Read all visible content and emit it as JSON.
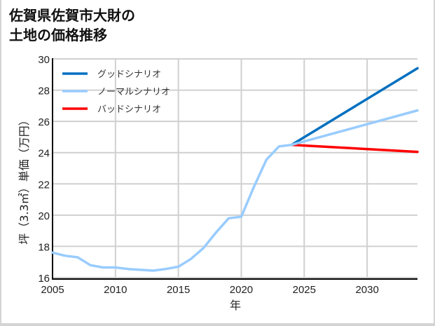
{
  "title_line1": "佐賀県佐賀市大財の",
  "title_line2": "土地の価格推移",
  "chart_data": {
    "type": "line",
    "title": "佐賀県佐賀市大財の土地の価格推移",
    "xlabel": "年",
    "ylabel": "坪（3.3㎡）単価（万円）",
    "xlim": [
      2005,
      2034
    ],
    "ylim": [
      16,
      30
    ],
    "x_ticks": [
      2005,
      2010,
      2015,
      2020,
      2025,
      2030
    ],
    "y_ticks": [
      16,
      18,
      20,
      22,
      24,
      26,
      28,
      30
    ],
    "grid": true,
    "legend_position": "upper left",
    "history": {
      "x": [
        2005,
        2006,
        2007,
        2008,
        2009,
        2010,
        2011,
        2012,
        2013,
        2014,
        2015,
        2016,
        2017,
        2018,
        2019,
        2020,
        2021,
        2022,
        2023,
        2024
      ],
      "values": [
        17.6,
        17.4,
        17.3,
        16.8,
        16.65,
        16.65,
        16.55,
        16.5,
        16.45,
        16.55,
        16.7,
        17.2,
        17.9,
        18.9,
        19.8,
        19.9,
        21.8,
        23.55,
        24.4,
        24.5
      ]
    },
    "series": [
      {
        "name": "グッドシナリオ",
        "color": "#0070c0",
        "x": [
          2024,
          2034
        ],
        "values": [
          24.5,
          29.4
        ]
      },
      {
        "name": "ノーマルシナリオ",
        "color": "#99ccff",
        "x": [
          2024,
          2034
        ],
        "values": [
          24.5,
          26.7
        ]
      },
      {
        "name": "バッドシナリオ",
        "color": "#ff0000",
        "x": [
          2024,
          2034
        ],
        "values": [
          24.5,
          24.05
        ]
      }
    ]
  },
  "legend": [
    {
      "label": "グッドシナリオ",
      "color": "#0070c0"
    },
    {
      "label": "ノーマルシナリオ",
      "color": "#99ccff"
    },
    {
      "label": "バッドシナリオ",
      "color": "#ff0000"
    }
  ],
  "axis": {
    "xlabel": "年",
    "ylabel": "坪（3.3㎡）単価（万円）"
  }
}
